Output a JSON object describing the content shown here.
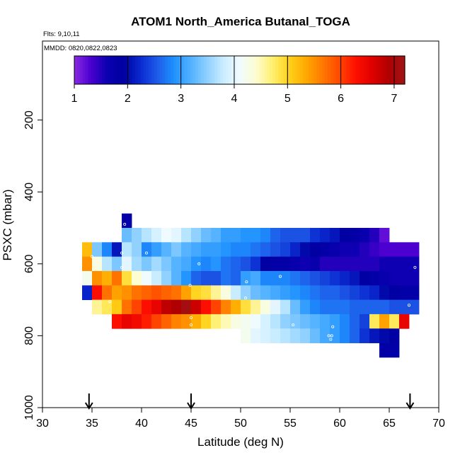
{
  "chart_data": {
    "type": "heatmap",
    "title": "ATOM1 North_America Butanal_TOGA",
    "flights_note": "Flts: 9,10,11",
    "dates_note": "MMDD: 0820,0822,0823",
    "xlabel": "Latitude (deg N)",
    "ylabel": "PSXC (mbar)",
    "xlim": [
      30,
      70
    ],
    "ylim": [
      1000,
      0
    ],
    "x_ticks": [
      "30",
      "35",
      "40",
      "45",
      "50",
      "55",
      "60",
      "65",
      "70"
    ],
    "y_ticks": [
      "200",
      "400",
      "600",
      "800",
      "1000"
    ],
    "colorbar": {
      "range": [
        1,
        7.2
      ],
      "tick_labels": [
        "1",
        "2",
        "3",
        "4",
        "5",
        "6",
        "7"
      ],
      "colors": [
        "#8a2be2",
        "#4b00d0",
        "#0a00b0",
        "#0000a0",
        "#0a2ad0",
        "#1e5ae8",
        "#1e90ff",
        "#4fb0ff",
        "#8ccfff",
        "#c8ecff",
        "#f0fbff",
        "#fdfdd0",
        "#ffef70",
        "#ffd21a",
        "#ffaa00",
        "#ff7a00",
        "#ff4a00",
        "#ff1000",
        "#e00000",
        "#b00000",
        "#a01414"
      ]
    },
    "arrows_latitude": [
      34.7,
      45,
      67.1
    ],
    "cell_size": {
      "lat_deg": 1,
      "pressure_mbar": 40
    },
    "rows": [
      {
        "p": 480,
        "cells": [
          [
            38.5,
            1.8
          ]
        ]
      },
      {
        "p": 520,
        "cells": [
          [
            38.5,
            3.3
          ],
          [
            39.5,
            3.5
          ],
          [
            40.5,
            3.7
          ],
          [
            41.5,
            3.9
          ],
          [
            42.5,
            4.1
          ],
          [
            43.5,
            4.0
          ],
          [
            44.5,
            3.7
          ],
          [
            45.5,
            3.5
          ],
          [
            46.5,
            3.3
          ],
          [
            47.5,
            3.2
          ],
          [
            48.5,
            3.0
          ],
          [
            49.5,
            3.0
          ],
          [
            50.5,
            2.9
          ],
          [
            51.5,
            2.9
          ],
          [
            52.5,
            2.8
          ],
          [
            53.5,
            2.6
          ],
          [
            54.5,
            2.5
          ],
          [
            55.5,
            2.5
          ],
          [
            56.5,
            2.5
          ],
          [
            57.5,
            2.3
          ],
          [
            58.5,
            2.2
          ],
          [
            59.5,
            2.1
          ],
          [
            60.5,
            1.9
          ],
          [
            61.5,
            1.8
          ],
          [
            62.5,
            1.7
          ],
          [
            63.5,
            1.5
          ],
          [
            64.5,
            1.2
          ]
        ]
      },
      {
        "p": 560,
        "cells": [
          [
            34.5,
            5.2
          ],
          [
            35.5,
            3.4
          ],
          [
            36.5,
            2.8
          ],
          [
            37.5,
            2.1
          ],
          [
            38.5,
            3.7
          ],
          [
            39.5,
            3.5
          ],
          [
            40.5,
            2.8
          ],
          [
            41.5,
            3.0
          ],
          [
            42.5,
            3.2
          ],
          [
            43.5,
            3.4
          ],
          [
            44.5,
            3.2
          ],
          [
            45.5,
            3.1
          ],
          [
            46.5,
            3.0
          ],
          [
            47.5,
            3.0
          ],
          [
            48.5,
            2.9
          ],
          [
            49.5,
            2.8
          ],
          [
            50.5,
            2.8
          ],
          [
            51.5,
            2.7
          ],
          [
            52.5,
            2.6
          ],
          [
            53.5,
            2.5
          ],
          [
            54.5,
            2.4
          ],
          [
            55.5,
            2.2
          ],
          [
            56.5,
            2.0
          ],
          [
            57.5,
            1.9
          ],
          [
            58.5,
            1.8
          ],
          [
            59.5,
            1.7
          ],
          [
            60.5,
            1.6
          ],
          [
            61.5,
            1.6
          ],
          [
            62.5,
            1.5
          ],
          [
            63.5,
            1.4
          ],
          [
            64.5,
            1.3
          ],
          [
            65.5,
            1.3
          ],
          [
            66.5,
            1.3
          ],
          [
            67.5,
            1.3
          ]
        ]
      },
      {
        "p": 600,
        "cells": [
          [
            34.5,
            5.5
          ],
          [
            35.5,
            4.3
          ],
          [
            36.5,
            3.7
          ],
          [
            37.5,
            3.4
          ],
          [
            38.5,
            4.0
          ],
          [
            39.5,
            3.6
          ],
          [
            40.5,
            3.4
          ],
          [
            41.5,
            3.6
          ],
          [
            42.5,
            3.4
          ],
          [
            43.5,
            3.2
          ],
          [
            44.5,
            3.1
          ],
          [
            45.5,
            2.9
          ],
          [
            46.5,
            2.8
          ],
          [
            47.5,
            2.9
          ],
          [
            48.5,
            2.7
          ],
          [
            49.5,
            2.6
          ],
          [
            50.5,
            2.5
          ],
          [
            51.5,
            2.3
          ],
          [
            52.5,
            1.9
          ],
          [
            53.5,
            1.8
          ],
          [
            54.5,
            1.8
          ],
          [
            55.5,
            1.7
          ],
          [
            56.5,
            1.6
          ],
          [
            57.5,
            1.7
          ],
          [
            58.5,
            1.5
          ],
          [
            59.5,
            1.5
          ],
          [
            60.5,
            1.5
          ],
          [
            61.5,
            1.5
          ],
          [
            62.5,
            1.5
          ],
          [
            63.5,
            1.5
          ],
          [
            64.5,
            1.6
          ],
          [
            65.5,
            1.6
          ],
          [
            66.5,
            1.6
          ],
          [
            67.5,
            1.6
          ]
        ]
      },
      {
        "p": 640,
        "cells": [
          [
            34.5,
            4.2
          ],
          [
            35.5,
            5.5
          ],
          [
            36.5,
            5.3
          ],
          [
            37.5,
            5.7
          ],
          [
            38.5,
            4.9
          ],
          [
            39.5,
            4.4
          ],
          [
            40.5,
            4.1
          ],
          [
            41.5,
            3.8
          ],
          [
            42.5,
            3.5
          ],
          [
            43.5,
            3.2
          ],
          [
            44.5,
            2.9
          ],
          [
            45.5,
            2.6
          ],
          [
            46.5,
            2.5
          ],
          [
            47.5,
            2.5
          ],
          [
            48.5,
            2.7
          ],
          [
            49.5,
            2.6
          ],
          [
            50.5,
            3.0
          ],
          [
            51.5,
            3.1
          ],
          [
            52.5,
            2.8
          ],
          [
            53.5,
            2.8
          ],
          [
            54.5,
            2.8
          ],
          [
            55.5,
            2.7
          ],
          [
            56.5,
            2.6
          ],
          [
            57.5,
            2.5
          ],
          [
            58.5,
            2.4
          ],
          [
            59.5,
            2.3
          ],
          [
            60.5,
            2.2
          ],
          [
            61.5,
            2.1
          ],
          [
            62.5,
            1.9
          ],
          [
            63.5,
            1.8
          ],
          [
            64.5,
            1.7
          ],
          [
            65.5,
            1.6
          ],
          [
            66.5,
            1.6
          ],
          [
            67.5,
            1.6
          ]
        ]
      },
      {
        "p": 680,
        "cells": [
          [
            34.5,
            2.2
          ],
          [
            35.5,
            6.3
          ],
          [
            36.5,
            5.7
          ],
          [
            37.5,
            5.4
          ],
          [
            38.5,
            5.5
          ],
          [
            39.5,
            5.7
          ],
          [
            40.5,
            5.8
          ],
          [
            41.5,
            5.9
          ],
          [
            42.5,
            5.8
          ],
          [
            43.5,
            5.7
          ],
          [
            44.5,
            5.4
          ],
          [
            45.5,
            5.0
          ],
          [
            46.5,
            4.9
          ],
          [
            47.5,
            4.6
          ],
          [
            48.5,
            4.3
          ],
          [
            49.5,
            3.8
          ],
          [
            50.5,
            3.5
          ],
          [
            51.5,
            3.3
          ],
          [
            52.5,
            3.2
          ],
          [
            53.5,
            3.1
          ],
          [
            54.5,
            3.0
          ],
          [
            55.5,
            2.9
          ],
          [
            56.5,
            2.8
          ],
          [
            57.5,
            2.7
          ],
          [
            58.5,
            2.6
          ],
          [
            59.5,
            2.6
          ],
          [
            60.5,
            2.5
          ],
          [
            61.5,
            2.4
          ],
          [
            62.5,
            2.3
          ],
          [
            63.5,
            2.2
          ],
          [
            64.5,
            2.0
          ],
          [
            65.5,
            1.9
          ],
          [
            66.5,
            1.8
          ],
          [
            67.5,
            1.8
          ]
        ]
      },
      {
        "p": 720,
        "cells": [
          [
            35.5,
            4.6
          ],
          [
            36.5,
            4.8
          ],
          [
            37.5,
            5.1
          ],
          [
            38.5,
            5.7
          ],
          [
            39.5,
            6.0
          ],
          [
            40.5,
            6.3
          ],
          [
            41.5,
            6.5
          ],
          [
            42.5,
            6.8
          ],
          [
            43.5,
            6.9
          ],
          [
            44.5,
            7.1
          ],
          [
            45.5,
            6.7
          ],
          [
            46.5,
            6.3
          ],
          [
            47.5,
            6.0
          ],
          [
            48.5,
            5.6
          ],
          [
            49.5,
            5.3
          ],
          [
            50.5,
            4.9
          ],
          [
            51.5,
            4.6
          ],
          [
            52.5,
            4.3
          ],
          [
            53.5,
            4.0
          ],
          [
            54.5,
            3.7
          ],
          [
            55.5,
            3.3
          ],
          [
            56.5,
            3.0
          ],
          [
            57.5,
            2.8
          ],
          [
            58.5,
            2.7
          ],
          [
            59.5,
            2.7
          ],
          [
            60.5,
            2.7
          ],
          [
            61.5,
            2.6
          ],
          [
            62.5,
            2.6
          ],
          [
            63.5,
            2.6
          ],
          [
            64.5,
            2.6
          ],
          [
            65.5,
            2.5
          ],
          [
            66.5,
            2.5
          ],
          [
            67.5,
            2.5
          ]
        ]
      },
      {
        "p": 760,
        "cells": [
          [
            37.5,
            6.3
          ],
          [
            38.5,
            6.5
          ],
          [
            39.5,
            6.4
          ],
          [
            40.5,
            6.2
          ],
          [
            41.5,
            6.0
          ],
          [
            42.5,
            5.8
          ],
          [
            43.5,
            5.6
          ],
          [
            44.5,
            5.5
          ],
          [
            45.5,
            5.3
          ],
          [
            46.5,
            5.0
          ],
          [
            47.5,
            4.7
          ],
          [
            48.5,
            4.5
          ],
          [
            49.5,
            4.3
          ],
          [
            50.5,
            4.2
          ],
          [
            51.5,
            4.1
          ],
          [
            52.5,
            3.9
          ],
          [
            53.5,
            3.7
          ],
          [
            54.5,
            3.5
          ],
          [
            55.5,
            3.4
          ],
          [
            56.5,
            3.3
          ],
          [
            57.5,
            3.2
          ],
          [
            58.5,
            3.1
          ],
          [
            59.5,
            3.0
          ],
          [
            60.5,
            2.8
          ],
          [
            61.5,
            2.6
          ],
          [
            62.5,
            2.4
          ],
          [
            63.5,
            4.8
          ],
          [
            64.5,
            5.4
          ],
          [
            65.5,
            4.8
          ],
          [
            66.5,
            6.5
          ]
        ]
      },
      {
        "p": 800,
        "cells": [
          [
            50.5,
            4.2
          ],
          [
            51.5,
            4.0
          ],
          [
            52.5,
            3.9
          ],
          [
            53.5,
            3.8
          ],
          [
            54.5,
            3.7
          ],
          [
            55.5,
            3.6
          ],
          [
            56.5,
            3.5
          ],
          [
            57.5,
            3.3
          ],
          [
            58.5,
            3.1
          ],
          [
            59.5,
            3.0
          ],
          [
            60.5,
            2.8
          ],
          [
            61.5,
            2.6
          ],
          [
            62.5,
            2.3
          ],
          [
            63.5,
            2.1
          ],
          [
            64.5,
            2.0
          ],
          [
            65.5,
            1.9
          ]
        ]
      },
      {
        "p": 840,
        "cells": [
          [
            64.5,
            1.8
          ],
          [
            65.5,
            1.8
          ]
        ]
      }
    ],
    "sample_points": [
      [
        38.3,
        490
      ],
      [
        38,
        570
      ],
      [
        40.5,
        570
      ],
      [
        35,
        580
      ],
      [
        45.8,
        600
      ],
      [
        38,
        610
      ],
      [
        44.9,
        660
      ],
      [
        50.6,
        650
      ],
      [
        54,
        635
      ],
      [
        50.5,
        695
      ],
      [
        67.6,
        610
      ],
      [
        45,
        750
      ],
      [
        45,
        770
      ],
      [
        34.8,
        745
      ],
      [
        45,
        790
      ],
      [
        59.3,
        775
      ],
      [
        59.2,
        800
      ],
      [
        58.9,
        800
      ],
      [
        59.1,
        810
      ],
      [
        55.3,
        770
      ],
      [
        67,
        820
      ],
      [
        66.8,
        850
      ],
      [
        37.5,
        855
      ],
      [
        65.1,
        910
      ],
      [
        64.7,
        945
      ],
      [
        64.9,
        945
      ],
      [
        67,
        715
      ],
      [
        36.8,
        705
      ]
    ]
  }
}
